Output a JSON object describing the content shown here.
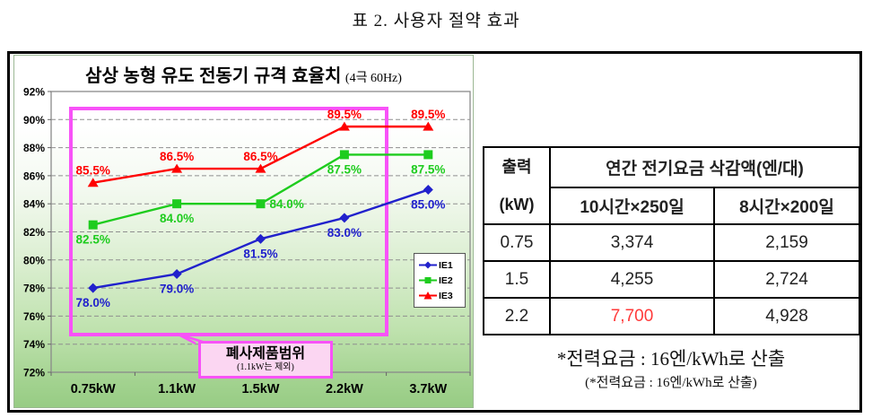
{
  "caption": "표 2. 사용자 절약 효과",
  "colors": {
    "magenta": "#f852f8",
    "callout_fill": "#fbd6f2",
    "highlight_red": "#ff3a3a",
    "ie1_blue": "#2121cc",
    "ie2_green": "#1ecc1e",
    "ie3_red": "#ff0000"
  },
  "chart_data": [
    {
      "type": "line",
      "title": "삼상 농형 유도 전동기 규격 효율치",
      "title_suffix": "(4극 60Hz)",
      "categories": [
        "0.75kW",
        "1.1kW",
        "1.5kW",
        "2.2kW",
        "3.7kW"
      ],
      "xlabel": "",
      "ylabel": "",
      "ylim": [
        72,
        92
      ],
      "y_tick_step": 2,
      "y_tick_suffix": "%",
      "grid": "dashed-horizontal",
      "legend_position": "middle-right",
      "series": [
        {
          "name": "IE1",
          "color": "#2121cc",
          "marker": "diamond",
          "values": [
            78.0,
            79.0,
            81.5,
            83.0,
            85.0
          ],
          "labels": [
            "78.0%",
            "79.0%",
            "81.5%",
            "83.0%",
            "85.0%"
          ],
          "label_pos": "below"
        },
        {
          "name": "IE2",
          "color": "#1ecc1e",
          "marker": "square",
          "values": [
            82.5,
            84.0,
            84.0,
            87.5,
            87.5
          ],
          "labels": [
            "82.5%",
            "84.0%",
            "84.0%",
            "87.5%",
            "87.5%"
          ],
          "label_pos": "below",
          "label_overrides": {
            "2": {
              "dx": 10,
              "dy": 5,
              "anchor": "start"
            }
          }
        },
        {
          "name": "IE3",
          "color": "#ff0000",
          "marker": "triangle",
          "values": [
            85.5,
            86.5,
            86.5,
            89.5,
            89.5
          ],
          "labels": [
            "85.5%",
            "86.5%",
            "86.5%",
            "89.5%",
            "89.5%"
          ],
          "label_pos": "above"
        }
      ],
      "range_box": {
        "label": "폐사제품범위",
        "sublabel": "(1.1kW는 제외)",
        "color": "#f852f8",
        "covers": "0.75kW~2.2kW (1.1kW 제외), 약 74.7%~91.2%"
      }
    },
    {
      "type": "table",
      "col_header": "출력",
      "col_header_unit": "(kW)",
      "merged_header": "연간 전기요금 삭감액(엔/대)",
      "columns": [
        "10시간×250일",
        "8시간×200일"
      ],
      "rows": [
        [
          "0.75",
          "3,374",
          "2,159"
        ],
        [
          "1.5",
          "4,255",
          "2,724"
        ],
        [
          "2.2",
          "7,700",
          "4,928"
        ]
      ],
      "highlight_cell": {
        "row": 2,
        "col": 1,
        "color": "#ff3a3a"
      },
      "footnote": "*전력요금 : 16엔/kWh로 산출",
      "footnote_sub": "(*전력요금 : 16엔/kWh로 산출)"
    }
  ]
}
